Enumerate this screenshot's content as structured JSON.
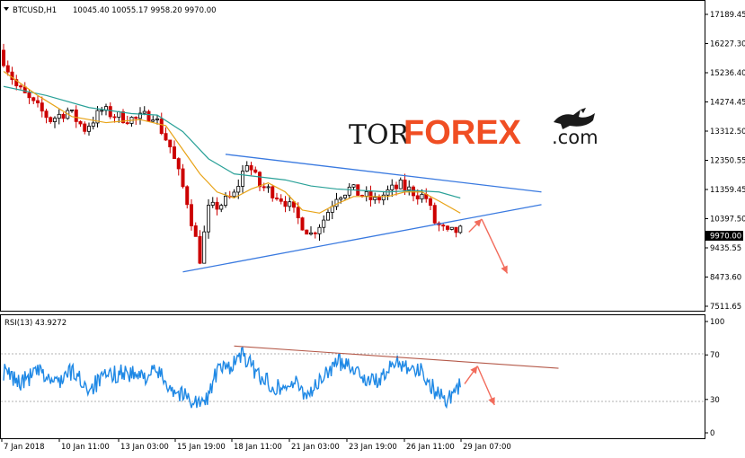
{
  "window": {
    "symbol_label": "BTCUSD,H1",
    "ohlc": "10045.40 10055.17 9958.20 9970.00",
    "rsi_label": "RSI(13) 43.9272"
  },
  "logo": {
    "part1": "TOR",
    "part2": "FOREX",
    "part3": ".com",
    "icon": "bull-bear-icon"
  },
  "colors": {
    "bull_candle": "#000000",
    "bear_candle": "#cc0000",
    "ma_fast": "#e8a317",
    "ma_slow": "#2aa198",
    "trendline": "#3a7ae0",
    "rsi_line": "#1e88e5",
    "rsi_trend": "#b55a4a",
    "forecast_arrow": "#f26b5b"
  },
  "chart_data": [
    {
      "type": "candlestick",
      "panel": "price",
      "x": [
        "7 Jan 2018",
        "10 Jan 11:00",
        "13 Jan 03:00",
        "15 Jan 19:00",
        "18 Jan 11:00",
        "21 Jan 03:00",
        "23 Jan 19:00",
        "26 Jan 11:00",
        "29 Jan 07:00"
      ],
      "yticks": [
        "17189.45",
        "16227.30",
        "15236.40",
        "14274.45",
        "13312.50",
        "12350.55",
        "11359.45",
        "10397.50",
        "9435.55",
        "8473.60",
        "7511.65"
      ],
      "ylim": [
        7511.65,
        17189.45
      ],
      "current_price": "9970.00",
      "path": [
        [
          0,
          16000
        ],
        [
          4,
          14800
        ],
        [
          8,
          14200
        ],
        [
          12,
          13700
        ],
        [
          16,
          14000
        ],
        [
          20,
          13400
        ],
        [
          24,
          14000
        ],
        [
          28,
          13800
        ],
        [
          32,
          13700
        ],
        [
          36,
          13900
        ],
        [
          40,
          12800
        ],
        [
          44,
          11000
        ],
        [
          47,
          9100
        ],
        [
          49,
          10700
        ],
        [
          52,
          10900
        ],
        [
          55,
          11200
        ],
        [
          58,
          12300
        ],
        [
          61,
          11500
        ],
        [
          64,
          11300
        ],
        [
          67,
          11000
        ],
        [
          70,
          10400
        ],
        [
          73,
          9900
        ],
        [
          76,
          10400
        ],
        [
          79,
          11200
        ],
        [
          82,
          11400
        ],
        [
          85,
          11200
        ],
        [
          88,
          11000
        ],
        [
          91,
          11300
        ],
        [
          94,
          11500
        ],
        [
          97,
          11300
        ],
        [
          100,
          11100
        ],
        [
          102,
          10300
        ],
        [
          105,
          9900
        ],
        [
          107,
          10000
        ]
      ],
      "ma_fast_path": [
        [
          0,
          15300
        ],
        [
          8,
          14500
        ],
        [
          16,
          13800
        ],
        [
          24,
          13600
        ],
        [
          32,
          13700
        ],
        [
          38,
          13500
        ],
        [
          42,
          12700
        ],
        [
          46,
          11900
        ],
        [
          50,
          11300
        ],
        [
          54,
          11100
        ],
        [
          58,
          11400
        ],
        [
          62,
          11600
        ],
        [
          66,
          11300
        ],
        [
          70,
          10700
        ],
        [
          74,
          10600
        ],
        [
          78,
          10900
        ],
        [
          82,
          11150
        ],
        [
          86,
          11150
        ],
        [
          90,
          11150
        ],
        [
          94,
          11300
        ],
        [
          98,
          11300
        ],
        [
          102,
          11000
        ],
        [
          107,
          10600
        ]
      ],
      "ma_slow_path": [
        [
          0,
          14800
        ],
        [
          10,
          14500
        ],
        [
          20,
          14100
        ],
        [
          30,
          13900
        ],
        [
          36,
          13850
        ],
        [
          42,
          13300
        ],
        [
          48,
          12400
        ],
        [
          54,
          11900
        ],
        [
          60,
          11800
        ],
        [
          66,
          11700
        ],
        [
          72,
          11500
        ],
        [
          78,
          11400
        ],
        [
          84,
          11350
        ],
        [
          90,
          11300
        ],
        [
          96,
          11350
        ],
        [
          102,
          11300
        ],
        [
          107,
          11100
        ]
      ],
      "trend_upper": [
        [
          52,
          12550
        ],
        [
          126,
          11300
        ]
      ],
      "trend_lower": [
        [
          42,
          8650
        ],
        [
          126,
          10880
        ]
      ],
      "forecast": [
        [
          109,
          9970
        ],
        [
          112,
          10400
        ],
        [
          118,
          8600
        ]
      ]
    },
    {
      "type": "line",
      "panel": "rsi",
      "name": "RSI(13)",
      "yticks": [
        "100",
        "70",
        "30",
        "0"
      ],
      "ylim": [
        0,
        100
      ],
      "levels": [
        70,
        30
      ],
      "current_value": 43.9272,
      "path": [
        [
          0,
          55
        ],
        [
          4,
          45
        ],
        [
          8,
          55
        ],
        [
          12,
          45
        ],
        [
          16,
          55
        ],
        [
          20,
          40
        ],
        [
          24,
          50
        ],
        [
          28,
          55
        ],
        [
          32,
          50
        ],
        [
          36,
          55
        ],
        [
          40,
          38
        ],
        [
          44,
          30
        ],
        [
          47,
          25
        ],
        [
          50,
          55
        ],
        [
          53,
          60
        ],
        [
          56,
          70
        ],
        [
          59,
          55
        ],
        [
          62,
          45
        ],
        [
          65,
          40
        ],
        [
          68,
          45
        ],
        [
          71,
          35
        ],
        [
          74,
          45
        ],
        [
          77,
          60
        ],
        [
          80,
          65
        ],
        [
          83,
          55
        ],
        [
          86,
          45
        ],
        [
          89,
          50
        ],
        [
          92,
          65
        ],
        [
          95,
          60
        ],
        [
          98,
          55
        ],
        [
          101,
          38
        ],
        [
          104,
          30
        ],
        [
          106,
          40
        ],
        [
          107,
          44
        ]
      ],
      "trend": [
        [
          54,
          78
        ],
        [
          130,
          58
        ]
      ],
      "forecast": [
        [
          108,
          44
        ],
        [
          111,
          60
        ],
        [
          115,
          25
        ]
      ]
    }
  ]
}
